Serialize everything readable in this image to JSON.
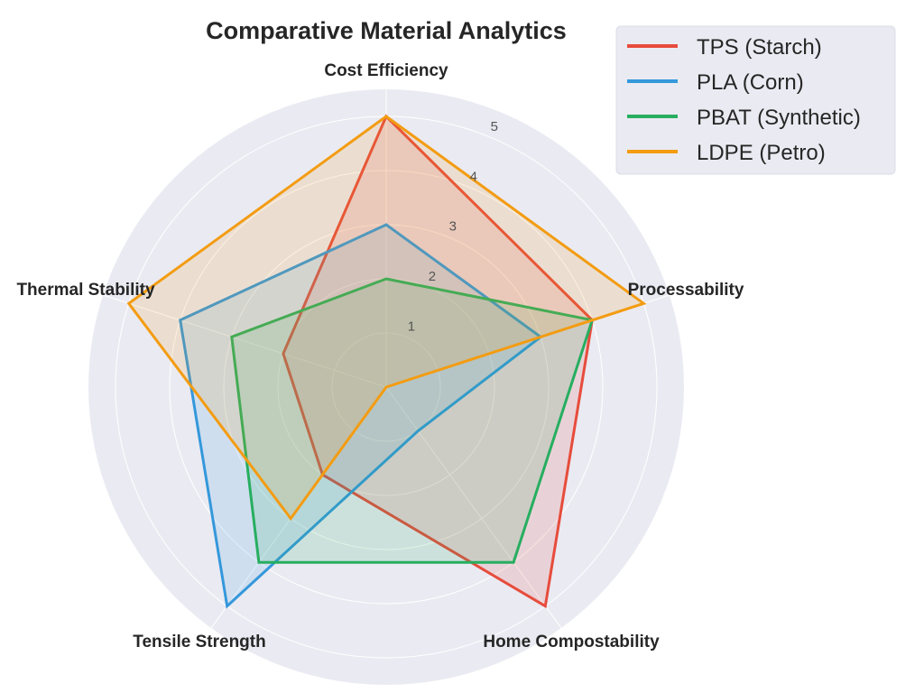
{
  "chart_data": {
    "type": "radar",
    "title": "Comparative Material Analytics",
    "axes": [
      "Cost Efficiency",
      "Processability",
      "Home Compostability",
      "Tensile Strength",
      "Thermal Stability"
    ],
    "radial_ticks": [
      "1",
      "2",
      "3",
      "4",
      "5"
    ],
    "radial_tick_values": [
      1,
      2,
      3,
      4,
      5
    ],
    "rlim": [
      0,
      5.5
    ],
    "grid": true,
    "legend_position": "top-right",
    "series": [
      {
        "name": "TPS (Starch)",
        "color": "#e74c3c",
        "values": [
          5,
          4,
          5,
          2,
          2
        ]
      },
      {
        "name": "PLA (Corn)",
        "color": "#3498db",
        "values": [
          3,
          3,
          1,
          5,
          4
        ]
      },
      {
        "name": "PBAT (Synthetic)",
        "color": "#27ae60",
        "values": [
          2,
          4,
          4,
          4,
          3
        ]
      },
      {
        "name": "LDPE (Petro)",
        "color": "#f39c12",
        "values": [
          5,
          5,
          0,
          3,
          5
        ]
      }
    ],
    "background_color": "#eaeaf2"
  }
}
